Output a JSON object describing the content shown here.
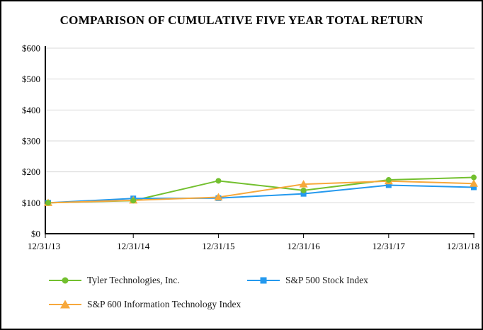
{
  "title": "COMPARISON OF CUMULATIVE FIVE YEAR TOTAL RETURN",
  "frame": {
    "background": "#ffffff",
    "border_color": "#000000"
  },
  "chart_data": {
    "type": "line",
    "title": "COMPARISON OF CUMULATIVE FIVE YEAR TOTAL RETURN",
    "xlabel": "",
    "ylabel": "",
    "x_labels": [
      "12/31/13",
      "12/31/14",
      "12/31/15",
      "12/31/16",
      "12/31/17",
      "12/31/18"
    ],
    "ylim": [
      0,
      600
    ],
    "y_ticks": [
      0,
      100,
      200,
      300,
      400,
      500,
      600
    ],
    "y_tick_labels": [
      "$0",
      "$100",
      "$200",
      "$300",
      "$400",
      "$500",
      "$600"
    ],
    "grid": "horizontal",
    "gridline_color": "#d9d9d9",
    "axis_color": "#000000",
    "legend_position": "bottom",
    "series": [
      {
        "name": "Tyler Technologies, Inc.",
        "marker": "circle",
        "color": "#73c02f",
        "values": [
          100,
          107,
          171,
          140,
          174,
          182
        ]
      },
      {
        "name": "S&P 500 Stock Index",
        "marker": "square",
        "color": "#2499ee",
        "values": [
          100,
          114,
          115,
          129,
          157,
          150
        ]
      },
      {
        "name": "S&P 600 Information Technology Index",
        "marker": "triangle",
        "color": "#f7a83b",
        "values": [
          100,
          108,
          118,
          160,
          170,
          162
        ]
      }
    ]
  }
}
